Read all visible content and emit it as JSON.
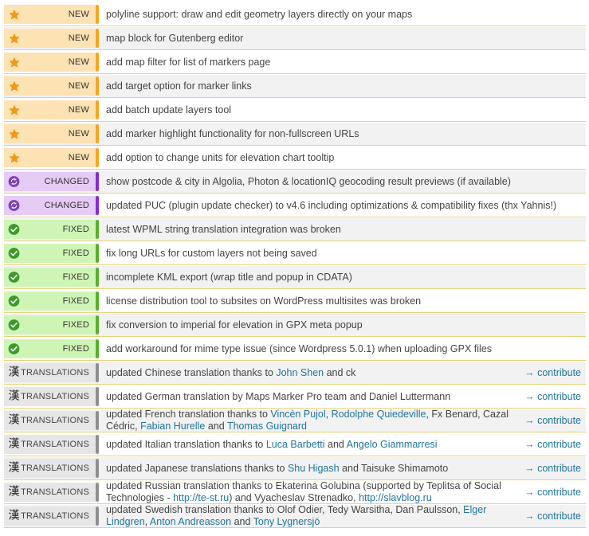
{
  "colors": {
    "new_badge": "#fde2b3",
    "new_bar": "#f6a520",
    "changed_badge": "#e6cbf5",
    "changed_bar": "#8a2ad2",
    "fixed_badge": "#cff5b6",
    "fixed_bar": "#59b02a",
    "translations_badge": "#e6e6e6",
    "translations_bar": "#8f8f8f",
    "link": "#21759b"
  },
  "labels": {
    "new": "NEW",
    "changed": "CHANGED",
    "fixed": "FIXED",
    "translations": "TRANSLATIONS",
    "translations_icon": "漢",
    "contribute": "→ contribute"
  },
  "entries": [
    {
      "type": "new",
      "icon": "star-icon",
      "parts": [
        {
          "t": "polyline support: draw and edit geometry layers directly on your maps"
        }
      ]
    },
    {
      "type": "new",
      "icon": "star-icon",
      "parts": [
        {
          "t": "map block for Gutenberg editor"
        }
      ]
    },
    {
      "type": "new",
      "icon": "star-icon",
      "parts": [
        {
          "t": "add map filter for list of markers page"
        }
      ]
    },
    {
      "type": "new",
      "icon": "star-icon",
      "parts": [
        {
          "t": "add target option for marker links"
        }
      ]
    },
    {
      "type": "new",
      "icon": "star-icon",
      "parts": [
        {
          "t": "add batch update layers tool"
        }
      ]
    },
    {
      "type": "new",
      "icon": "star-icon",
      "parts": [
        {
          "t": "add marker highlight functionality for non-fullscreen URLs"
        }
      ]
    },
    {
      "type": "new",
      "icon": "star-icon",
      "parts": [
        {
          "t": "add option to change units for elevation chart tooltip"
        }
      ]
    },
    {
      "type": "changed",
      "icon": "refresh-icon",
      "parts": [
        {
          "t": "show postcode & city in Algolia, Photon & locationIQ geocoding result previews (if available)"
        }
      ]
    },
    {
      "type": "changed",
      "icon": "refresh-icon",
      "parts": [
        {
          "t": "updated PUC (plugin update checker) to v4.6 including optimizations & compatibility fixes (thx Yahnis!)"
        }
      ]
    },
    {
      "type": "fixed",
      "icon": "check-icon",
      "parts": [
        {
          "t": "latest WPML string translation integration was broken"
        }
      ]
    },
    {
      "type": "fixed",
      "icon": "check-icon",
      "parts": [
        {
          "t": "fix long URLs for custom layers not being saved"
        }
      ]
    },
    {
      "type": "fixed",
      "icon": "check-icon",
      "parts": [
        {
          "t": "incomplete KML export (wrap title and popup in CDATA)"
        }
      ]
    },
    {
      "type": "fixed",
      "icon": "check-icon",
      "parts": [
        {
          "t": "license distribution tool to subsites on WordPress multisites was broken"
        }
      ]
    },
    {
      "type": "fixed",
      "icon": "check-icon",
      "parts": [
        {
          "t": "fix conversion to imperial for elevation in GPX meta popup"
        }
      ]
    },
    {
      "type": "fixed",
      "icon": "check-icon",
      "parts": [
        {
          "t": "add workaround for mime type issue (since Wordpress 5.0.1) when uploading GPX files"
        }
      ]
    },
    {
      "type": "translations",
      "icon": "kanji-icon",
      "contribute": true,
      "parts": [
        {
          "t": "updated Chinese translation thanks to "
        },
        {
          "t": "John Shen",
          "link": true
        },
        {
          "t": " and ck"
        }
      ]
    },
    {
      "type": "translations",
      "icon": "kanji-icon",
      "contribute": true,
      "parts": [
        {
          "t": "updated German translation by Maps Marker Pro team and Daniel Luttermann"
        }
      ]
    },
    {
      "type": "translations",
      "icon": "kanji-icon",
      "contribute": true,
      "parts": [
        {
          "t": "updated French translation thanks to "
        },
        {
          "t": "Vincèn Pujol",
          "link": true
        },
        {
          "t": ", "
        },
        {
          "t": "Rodolphe Quiedeville",
          "link": true
        },
        {
          "t": ", Fx Benard, Cazal Cédric, "
        },
        {
          "t": "Fabian Hurelle",
          "link": true
        },
        {
          "t": " and "
        },
        {
          "t": "Thomas Guignard",
          "link": true
        }
      ]
    },
    {
      "type": "translations",
      "icon": "kanji-icon",
      "contribute": true,
      "parts": [
        {
          "t": "updated Italian translation thanks to "
        },
        {
          "t": "Luca Barbetti",
          "link": true
        },
        {
          "t": " and "
        },
        {
          "t": "Angelo Giammarresi",
          "link": true
        }
      ]
    },
    {
      "type": "translations",
      "icon": "kanji-icon",
      "contribute": true,
      "parts": [
        {
          "t": "updated Japanese translations thanks to "
        },
        {
          "t": "Shu Higash",
          "link": true
        },
        {
          "t": " and Taisuke Shimamoto"
        }
      ]
    },
    {
      "type": "translations",
      "icon": "kanji-icon",
      "contribute": true,
      "parts": [
        {
          "t": "updated Russian translation thanks to Ekaterina Golubina (supported by Teplitsa of Social Technologies - "
        },
        {
          "t": "http://te-st.ru",
          "link": true
        },
        {
          "t": ") and Vyacheslav Strenadko, "
        },
        {
          "t": "http://slavblog.ru",
          "link": true
        }
      ]
    },
    {
      "type": "translations",
      "icon": "kanji-icon",
      "contribute": true,
      "parts": [
        {
          "t": "updated Swedish translation thanks to Olof Odier, Tedy Warsitha, Dan Paulsson, "
        },
        {
          "t": "Elger Lindgren",
          "link": true
        },
        {
          "t": ", "
        },
        {
          "t": "Anton Andreasson",
          "link": true
        },
        {
          "t": " and "
        },
        {
          "t": "Tony Lygnersjö",
          "link": true
        }
      ]
    }
  ]
}
